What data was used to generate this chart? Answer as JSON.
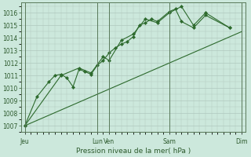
{
  "xlabel": "Pression niveau de la mer( hPa )",
  "background_color": "#cce8dc",
  "plot_bg_color": "#cce8dc",
  "grid_color": "#b0c8be",
  "line_color": "#2d6a2d",
  "ylim": [
    1006.5,
    1016.8
  ],
  "yticks": [
    1007,
    1008,
    1009,
    1010,
    1011,
    1012,
    1013,
    1014,
    1015,
    1016
  ],
  "xtick_labels": [
    "Jeu",
    "Lun",
    "Ven",
    "Sam",
    "Dim"
  ],
  "xtick_positions": [
    0,
    6,
    7,
    12,
    18
  ],
  "vline_positions": [
    0,
    6,
    7,
    12,
    18
  ],
  "x_total": 18,
  "series1_x": [
    0,
    1,
    2,
    2.5,
    3,
    3.5,
    4,
    4.5,
    5,
    5.5,
    6,
    6.5,
    7,
    7.5,
    8,
    8.5,
    9,
    9.5,
    10,
    10.5,
    11,
    12,
    12.5,
    13,
    14,
    15,
    17
  ],
  "series1_y": [
    1007.0,
    1009.3,
    1010.5,
    1011.0,
    1011.1,
    1010.8,
    1010.1,
    1011.5,
    1011.3,
    1011.1,
    1011.8,
    1012.2,
    1012.8,
    1013.2,
    1013.5,
    1013.7,
    1014.1,
    1015.0,
    1015.2,
    1015.5,
    1015.3,
    1016.1,
    1016.3,
    1015.3,
    1014.8,
    1015.8,
    1014.8
  ],
  "series2_x": [
    0,
    3,
    4.5,
    5.5,
    6.5,
    7,
    8,
    9,
    10,
    11,
    12,
    13,
    14,
    15,
    17
  ],
  "series2_y": [
    1007.0,
    1011.0,
    1011.6,
    1011.2,
    1012.5,
    1012.2,
    1013.8,
    1014.3,
    1015.5,
    1015.2,
    1016.0,
    1016.5,
    1015.0,
    1016.0,
    1014.8
  ],
  "trend_x": [
    0,
    18
  ],
  "trend_y": [
    1007.0,
    1014.5
  ],
  "marker": "D",
  "markersize": 2.0,
  "linewidth": 0.8
}
